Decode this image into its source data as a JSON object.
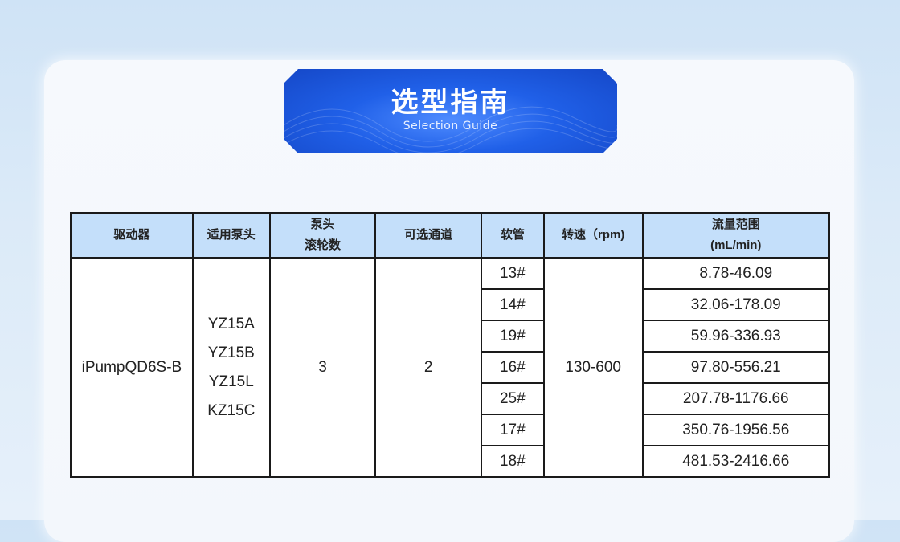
{
  "banner": {
    "title": "选型指南",
    "subtitle": "Selection Guide"
  },
  "table": {
    "headers": [
      "驱动器",
      "适用泵头",
      "泵头",
      "滚轮数",
      "可选通道",
      "软管",
      "转速（rpm)",
      "流量范围",
      "(mL/min)"
    ],
    "driver": "iPumpQD6S-B",
    "pump_heads": [
      "YZ15A",
      "YZ15B",
      "YZ15L",
      "KZ15C"
    ],
    "rollers": "3",
    "channels": "2",
    "speed": "130-600",
    "rows": [
      {
        "tube": "13#",
        "flow": "8.78-46.09"
      },
      {
        "tube": "14#",
        "flow": "32.06-178.09"
      },
      {
        "tube": "19#",
        "flow": "59.96-336.93"
      },
      {
        "tube": "16#",
        "flow": "97.80-556.21"
      },
      {
        "tube": "25#",
        "flow": "207.78-1176.66"
      },
      {
        "tube": "17#",
        "flow": "350.76-1956.56"
      },
      {
        "tube": "18#",
        "flow": "481.53-2416.66"
      }
    ]
  }
}
